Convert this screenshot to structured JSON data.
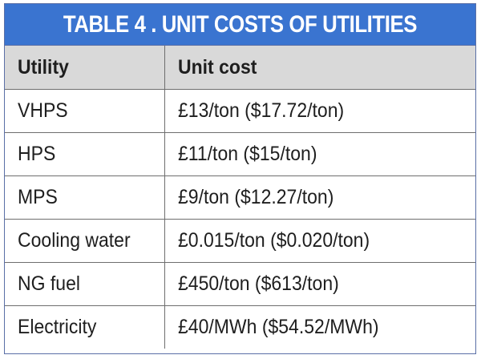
{
  "title": "TABLE 4 . UNIT COSTS OF UTILITIES",
  "colors": {
    "title_bar": "#3a74d0",
    "header_row": "#d9d9d9",
    "border": "#6e6e6e"
  },
  "columns": [
    "Utility",
    "Unit cost"
  ],
  "rows": [
    {
      "utility": "VHPS",
      "cost": "£13/ton ($17.72/ton)"
    },
    {
      "utility": "HPS",
      "cost": "£11/ton ($15/ton)"
    },
    {
      "utility": "MPS",
      "cost": "£9/ton ($12.27/ton)"
    },
    {
      "utility": "Cooling water",
      "cost": "£0.015/ton ($0.020/ton)"
    },
    {
      "utility": "NG fuel",
      "cost": "£450/ton ($613/ton)"
    },
    {
      "utility": "Electricity",
      "cost": "£40/MWh ($54.52/MWh)"
    }
  ]
}
